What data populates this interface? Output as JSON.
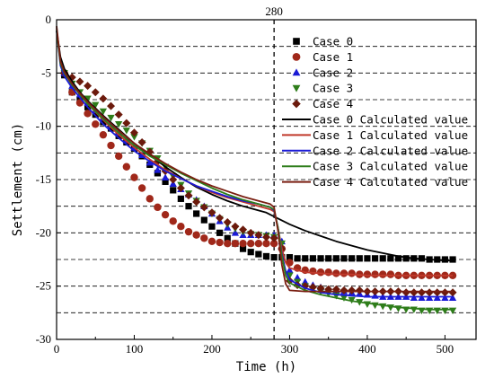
{
  "chart_data": {
    "type": "scatter",
    "title": "",
    "xlabel": "Time (h)",
    "ylabel": "Settlement (cm)",
    "xlim": [
      0,
      540
    ],
    "ylim": [
      -30,
      0
    ],
    "xticks": [
      0,
      100,
      200,
      300,
      400,
      500
    ],
    "yticks": [
      0,
      -5,
      -10,
      -15,
      -20,
      -25,
      -30
    ],
    "grid": "horizontal dashed",
    "legend_position": "top-right",
    "annotation": {
      "x": 280,
      "label": "280"
    },
    "series": [
      {
        "name": "Case 0",
        "kind": "markers",
        "marker": "square",
        "color": "#000000",
        "x": [
          10,
          20,
          30,
          40,
          50,
          60,
          70,
          80,
          90,
          100,
          110,
          120,
          130,
          140,
          150,
          160,
          170,
          180,
          190,
          200,
          210,
          220,
          230,
          240,
          250,
          260,
          270,
          280,
          290,
          300,
          310,
          320,
          330,
          340,
          350,
          360,
          370,
          380,
          390,
          400,
          410,
          420,
          430,
          440,
          450,
          460,
          470,
          480,
          490,
          500,
          510
        ],
        "y": [
          -5.2,
          -6.8,
          -7.5,
          -8.2,
          -8.9,
          -9.6,
          -10.2,
          -10.9,
          -11.5,
          -12.1,
          -12.8,
          -13.6,
          -14.4,
          -15.2,
          -16.0,
          -16.8,
          -17.5,
          -18.2,
          -18.8,
          -19.4,
          -20.0,
          -20.5,
          -21.0,
          -21.5,
          -21.8,
          -22.0,
          -22.2,
          -22.3,
          -22.3,
          -22.3,
          -22.4,
          -22.4,
          -22.4,
          -22.4,
          -22.4,
          -22.4,
          -22.4,
          -22.4,
          -22.4,
          -22.4,
          -22.4,
          -22.4,
          -22.4,
          -22.4,
          -22.4,
          -22.4,
          -22.4,
          -22.5,
          -22.5,
          -22.5,
          -22.5
        ]
      },
      {
        "name": "Case 1",
        "kind": "markers",
        "marker": "circle",
        "color": "#a0281a",
        "x": [
          10,
          20,
          30,
          40,
          50,
          60,
          70,
          80,
          90,
          100,
          110,
          120,
          130,
          140,
          150,
          160,
          170,
          180,
          190,
          200,
          210,
          220,
          230,
          240,
          250,
          260,
          270,
          280,
          290,
          300,
          310,
          320,
          330,
          340,
          350,
          360,
          370,
          380,
          390,
          400,
          410,
          420,
          430,
          440,
          450,
          460,
          470,
          480,
          490,
          500,
          510
        ],
        "y": [
          -5.0,
          -6.8,
          -7.8,
          -8.8,
          -9.8,
          -10.8,
          -11.8,
          -12.8,
          -13.8,
          -14.8,
          -15.8,
          -16.8,
          -17.6,
          -18.3,
          -18.9,
          -19.4,
          -19.9,
          -20.2,
          -20.5,
          -20.8,
          -20.9,
          -21.0,
          -21.0,
          -21.0,
          -21.0,
          -21.0,
          -21.0,
          -21.0,
          -21.5,
          -22.8,
          -23.3,
          -23.5,
          -23.6,
          -23.7,
          -23.7,
          -23.8,
          -23.8,
          -23.8,
          -23.9,
          -23.9,
          -23.9,
          -23.9,
          -23.9,
          -24.0,
          -24.0,
          -24.0,
          -24.0,
          -24.0,
          -24.0,
          -24.0,
          -24.0
        ]
      },
      {
        "name": "Case 2",
        "kind": "markers",
        "marker": "triangle-up",
        "color": "#1a1ad6",
        "x": [
          10,
          20,
          30,
          40,
          50,
          60,
          70,
          80,
          90,
          100,
          110,
          120,
          130,
          140,
          150,
          160,
          170,
          180,
          190,
          200,
          210,
          220,
          230,
          240,
          250,
          260,
          270,
          280,
          290,
          300,
          310,
          320,
          330,
          340,
          350,
          360,
          370,
          380,
          390,
          400,
          410,
          420,
          430,
          440,
          450,
          460,
          470,
          480,
          490,
          500,
          510
        ],
        "y": [
          -5.0,
          -6.2,
          -7.0,
          -7.8,
          -8.5,
          -9.2,
          -9.9,
          -10.6,
          -11.3,
          -12.0,
          -12.7,
          -13.4,
          -14.1,
          -14.8,
          -15.4,
          -15.9,
          -16.4,
          -16.9,
          -17.5,
          -18.2,
          -18.9,
          -19.5,
          -20.0,
          -20.2,
          -20.2,
          -20.2,
          -20.2,
          -20.2,
          -20.8,
          -23.5,
          -24.2,
          -24.6,
          -24.9,
          -25.1,
          -25.3,
          -25.4,
          -25.5,
          -25.6,
          -25.7,
          -25.8,
          -25.9,
          -26.0,
          -26.0,
          -26.0,
          -26.0,
          -26.1,
          -26.1,
          -26.1,
          -26.1,
          -26.1,
          -26.1
        ]
      },
      {
        "name": "Case 3",
        "kind": "markers",
        "marker": "triangle-down",
        "color": "#2e7d1a",
        "x": [
          10,
          20,
          30,
          40,
          50,
          60,
          70,
          80,
          90,
          100,
          110,
          120,
          130,
          140,
          150,
          160,
          170,
          180,
          190,
          200,
          210,
          220,
          230,
          240,
          250,
          260,
          270,
          280,
          290,
          300,
          310,
          320,
          330,
          340,
          350,
          360,
          370,
          380,
          390,
          400,
          410,
          420,
          430,
          440,
          450,
          460,
          470,
          480,
          490,
          500,
          510
        ],
        "y": [
          -5.0,
          -6.0,
          -6.8,
          -7.4,
          -8.0,
          -8.6,
          -9.2,
          -9.8,
          -10.4,
          -11.0,
          -11.6,
          -12.3,
          -13.0,
          -13.8,
          -14.7,
          -15.5,
          -16.3,
          -17.0,
          -17.6,
          -18.2,
          -18.7,
          -19.2,
          -19.6,
          -19.9,
          -20.1,
          -20.2,
          -20.3,
          -20.4,
          -21.0,
          -24.0,
          -24.6,
          -25.0,
          -25.3,
          -25.5,
          -25.7,
          -25.9,
          -26.1,
          -26.3,
          -26.5,
          -26.7,
          -26.8,
          -26.9,
          -27.0,
          -27.1,
          -27.2,
          -27.2,
          -27.3,
          -27.3,
          -27.3,
          -27.3,
          -27.3
        ]
      },
      {
        "name": "Case 4",
        "kind": "markers",
        "marker": "diamond",
        "color": "#6b1a0c",
        "x": [
          10,
          20,
          30,
          40,
          50,
          60,
          70,
          80,
          90,
          100,
          110,
          120,
          130,
          140,
          150,
          160,
          170,
          180,
          190,
          200,
          210,
          220,
          230,
          240,
          250,
          260,
          270,
          280,
          290,
          300,
          310,
          320,
          330,
          340,
          350,
          360,
          370,
          380,
          390,
          400,
          410,
          420,
          430,
          440,
          450,
          460,
          470,
          480,
          490,
          500,
          510
        ],
        "y": [
          -5.0,
          -5.4,
          -5.8,
          -6.2,
          -6.8,
          -7.4,
          -8.1,
          -8.9,
          -9.7,
          -10.6,
          -11.5,
          -12.4,
          -13.3,
          -14.2,
          -15.0,
          -15.8,
          -16.5,
          -17.1,
          -17.6,
          -18.1,
          -18.6,
          -19.0,
          -19.4,
          -19.7,
          -20.0,
          -20.2,
          -20.4,
          -20.5,
          -21.5,
          -24.5,
          -24.9,
          -25.0,
          -25.1,
          -25.2,
          -25.3,
          -25.3,
          -25.4,
          -25.4,
          -25.4,
          -25.5,
          -25.5,
          -25.5,
          -25.5,
          -25.5,
          -25.6,
          -25.6,
          -25.6,
          -25.6,
          -25.6,
          -25.6,
          -25.6
        ]
      },
      {
        "name": "Case 0 Calculated value",
        "kind": "line",
        "color": "#000000",
        "x": [
          0,
          5,
          10,
          20,
          30,
          40,
          60,
          80,
          100,
          120,
          140,
          160,
          180,
          200,
          220,
          240,
          260,
          270,
          278,
          300,
          320,
          340,
          360,
          380,
          400,
          420,
          440,
          460,
          480,
          500,
          510
        ],
        "y": [
          -1.0,
          -3.5,
          -4.6,
          -5.8,
          -6.8,
          -7.6,
          -9.0,
          -10.3,
          -11.6,
          -12.7,
          -13.8,
          -14.8,
          -15.7,
          -16.4,
          -17.0,
          -17.5,
          -17.9,
          -18.1,
          -18.4,
          -19.2,
          -19.8,
          -20.3,
          -20.8,
          -21.2,
          -21.6,
          -21.9,
          -22.2,
          -22.4,
          -22.5,
          -22.6,
          -22.6
        ]
      },
      {
        "name": "Case 1 Calculated value",
        "kind": "line",
        "color": "#c0392b",
        "x": [
          0,
          5,
          10,
          20,
          30,
          40,
          60,
          80,
          100,
          120,
          140,
          160,
          180,
          200,
          220,
          240,
          260,
          275,
          280,
          285,
          290,
          295,
          300,
          320,
          340,
          360,
          380,
          400,
          420,
          440,
          460,
          480,
          500,
          510
        ],
        "y": [
          -0.8,
          -4.0,
          -5.0,
          -6.1,
          -7.0,
          -7.9,
          -9.4,
          -10.8,
          -12.0,
          -13.1,
          -14.1,
          -14.9,
          -15.6,
          -16.2,
          -16.7,
          -17.1,
          -17.5,
          -17.8,
          -18.0,
          -19.5,
          -21.5,
          -22.8,
          -23.3,
          -23.7,
          -23.8,
          -23.9,
          -23.9,
          -24.0,
          -24.0,
          -24.0,
          -24.0,
          -24.0,
          -24.0,
          -24.0
        ]
      },
      {
        "name": "Case 2 Calculated value",
        "kind": "line",
        "color": "#1a1ad6",
        "x": [
          0,
          5,
          10,
          20,
          30,
          40,
          60,
          80,
          100,
          120,
          140,
          160,
          180,
          200,
          220,
          240,
          260,
          275,
          280,
          285,
          290,
          295,
          300,
          320,
          340,
          360,
          380,
          400,
          420,
          440,
          460,
          480,
          500,
          510
        ],
        "y": [
          -1.0,
          -4.3,
          -5.3,
          -6.4,
          -7.3,
          -8.2,
          -9.8,
          -11.1,
          -12.3,
          -13.3,
          -14.2,
          -14.9,
          -15.6,
          -16.1,
          -16.6,
          -17.0,
          -17.3,
          -17.6,
          -17.9,
          -19.5,
          -22.0,
          -23.6,
          -24.4,
          -25.2,
          -25.6,
          -25.8,
          -25.9,
          -26.0,
          -26.0,
          -26.0,
          -26.0,
          -26.0,
          -26.0,
          -26.0
        ]
      },
      {
        "name": "Case 3 Calculated value",
        "kind": "line",
        "color": "#2e7d1a",
        "x": [
          0,
          5,
          10,
          20,
          30,
          40,
          60,
          80,
          100,
          120,
          140,
          160,
          180,
          200,
          220,
          240,
          260,
          275,
          280,
          285,
          290,
          295,
          300,
          320,
          340,
          360,
          380,
          400,
          420,
          440,
          460,
          480,
          500,
          510
        ],
        "y": [
          -1.0,
          -4.1,
          -5.0,
          -6.1,
          -7.0,
          -7.9,
          -9.3,
          -10.6,
          -11.8,
          -12.8,
          -13.6,
          -14.4,
          -15.1,
          -15.8,
          -16.4,
          -16.9,
          -17.3,
          -17.6,
          -17.8,
          -19.5,
          -22.2,
          -24.0,
          -24.7,
          -25.4,
          -25.8,
          -26.1,
          -26.4,
          -26.6,
          -26.8,
          -27.0,
          -27.1,
          -27.2,
          -27.2,
          -27.2
        ]
      },
      {
        "name": "Case 4 Calculated value",
        "kind": "line",
        "color": "#7a1f12",
        "x": [
          0,
          5,
          10,
          20,
          30,
          40,
          60,
          80,
          100,
          120,
          140,
          160,
          180,
          200,
          220,
          240,
          260,
          275,
          280,
          285,
          290,
          295,
          300,
          320,
          340,
          360,
          380,
          400,
          420,
          440,
          460,
          480,
          500,
          510
        ],
        "y": [
          -0.6,
          -3.9,
          -4.9,
          -6.0,
          -6.9,
          -7.7,
          -9.1,
          -10.4,
          -11.6,
          -12.6,
          -13.5,
          -14.3,
          -15.0,
          -15.6,
          -16.1,
          -16.6,
          -17.0,
          -17.3,
          -17.6,
          -19.8,
          -23.0,
          -24.8,
          -25.4,
          -25.5,
          -25.5,
          -25.5,
          -25.5,
          -25.5,
          -25.5,
          -25.5,
          -25.5,
          -25.5,
          -25.5,
          -25.5
        ]
      }
    ]
  }
}
